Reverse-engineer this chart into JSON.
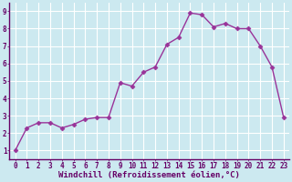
{
  "x": [
    0,
    1,
    2,
    3,
    4,
    5,
    6,
    7,
    8,
    9,
    10,
    11,
    12,
    13,
    14,
    15,
    16,
    17,
    18,
    19,
    20,
    21,
    22,
    23
  ],
  "y": [
    1.0,
    2.3,
    2.6,
    2.6,
    2.3,
    2.5,
    2.8,
    2.9,
    2.9,
    4.9,
    4.7,
    5.5,
    5.8,
    7.1,
    7.5,
    8.9,
    8.8,
    8.1,
    8.3,
    8.0,
    8.0,
    7.0,
    5.8,
    2.9
  ],
  "line_color": "#993399",
  "marker": "D",
  "marker_size": 2.5,
  "bg_color": "#cce9f0",
  "grid_color": "#ffffff",
  "xlabel": "Windchill (Refroidissement éolien,°C)",
  "xlabel_color": "#660066",
  "xlabel_fontsize": 6.5,
  "xlim": [
    -0.5,
    23.5
  ],
  "ylim": [
    0.5,
    9.5
  ],
  "yticks": [
    1,
    2,
    3,
    4,
    5,
    6,
    7,
    8,
    9
  ],
  "xticks": [
    0,
    1,
    2,
    3,
    4,
    5,
    6,
    7,
    8,
    9,
    10,
    11,
    12,
    13,
    14,
    15,
    16,
    17,
    18,
    19,
    20,
    21,
    22,
    23
  ],
  "tick_fontsize": 5.5,
  "axis_label_color": "#660066",
  "spine_color": "#660066",
  "tick_color": "#660066",
  "line_width": 1.0
}
